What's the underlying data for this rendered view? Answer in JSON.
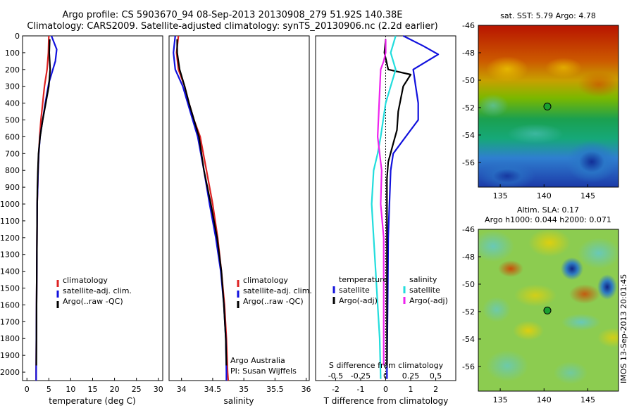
{
  "title_line1": "Argo profile: CS 5903670_94 08-Sep-2013 20130908_279 51.92S 140.38E",
  "title_line2": "Climatology: CARS2009. Satellite-adjusted climatology: synTS_20130906.nc (2.2d earlier)",
  "side_stamp": "IMOS 13-Sep-2013 20:01:45",
  "colors": {
    "climatology": "#dd2222",
    "satellite": "#1111dd",
    "argo": "#000000",
    "sal_sat": "#22dddd",
    "sal_argo": "#ee22ee"
  },
  "depth_ticks": [
    0,
    100,
    200,
    300,
    400,
    500,
    600,
    700,
    800,
    900,
    1000,
    1100,
    1200,
    1300,
    1400,
    1500,
    1600,
    1700,
    1800,
    1900,
    2000
  ],
  "panel_temp": {
    "xlabel": "temperature (deg C)",
    "xticks": [
      "0",
      "5",
      "10",
      "15",
      "20",
      "25",
      "30"
    ],
    "legend": [
      "climatology",
      "satellite-adj. clim.",
      "Argo(..raw -QC)"
    ]
  },
  "panel_sal": {
    "xlabel": "salinity",
    "xticks": [
      "34",
      "34.5",
      "35",
      "35.5",
      "36"
    ],
    "legend": [
      "climatology",
      "satellite-adj. clim.",
      "Argo(..raw -QC)"
    ],
    "credit1": "Argo Australia",
    "credit2": "PI: Susan Wijffels"
  },
  "panel_diff": {
    "xlabel": "T difference from climatology",
    "s_label": "S difference from climatology",
    "s_ticks": [
      "-0.5",
      "-0.25",
      "0",
      "0.25",
      "0.5"
    ],
    "t_ticks": [
      "-2",
      "-1",
      "0",
      "1",
      "2"
    ],
    "leg_temp_title": "temperature",
    "leg_sal_title": "salinity",
    "leg_t_sat": "satellite",
    "leg_t_argo": "Argo(-adj)",
    "leg_s_sat": "satellite",
    "leg_s_argo": "Argo(-adj)"
  },
  "map_sst": {
    "title": "sat. SST: 5.79 Argo: 4.78",
    "lat_ticks": [
      "-46",
      "-48",
      "-50",
      "-52",
      "-54",
      "-56"
    ],
    "lon_ticks": [
      "135",
      "140",
      "145"
    ]
  },
  "map_sla": {
    "title1": "Altim. SLA: 0.17",
    "title2": "Argo h1000: 0.044 h2000: 0.071",
    "lat_ticks": [
      "-46",
      "-48",
      "-50",
      "-52",
      "-54",
      "-56"
    ],
    "lon_ticks": [
      "135",
      "140",
      "145"
    ]
  },
  "chart_data": {
    "type": "line",
    "temperature": {
      "xlim": [
        -1,
        31
      ],
      "ylim": [
        0,
        2050
      ],
      "series": [
        {
          "name": "climatology",
          "x": [
            5.0,
            4.9,
            4.6,
            4.0,
            3.6,
            3.2,
            2.9,
            2.7,
            2.55,
            2.45,
            2.35,
            2.3,
            2.25,
            2.2,
            2.15,
            2.1,
            2.1
          ],
          "y": [
            0,
            100,
            200,
            300,
            400,
            500,
            600,
            700,
            800,
            900,
            1000,
            1200,
            1400,
            1600,
            1800,
            2000,
            2050
          ]
        },
        {
          "name": "satellite-adj. clim.",
          "x": [
            5.6,
            6.8,
            6.5,
            5.0,
            4.2,
            3.6,
            3.0,
            2.7,
            2.55,
            2.45,
            2.35,
            2.3,
            2.25,
            2.2,
            2.15,
            2.1,
            2.1
          ],
          "y": [
            0,
            80,
            150,
            280,
            400,
            500,
            600,
            700,
            800,
            900,
            1000,
            1200,
            1400,
            1600,
            1800,
            2000,
            2050
          ]
        },
        {
          "name": "Argo(..raw -QC)",
          "x": [
            5.2,
            5.1,
            5.3,
            5.0,
            4.3,
            3.6,
            3.0,
            2.65,
            2.5,
            2.4,
            2.35,
            2.3,
            2.25,
            2.2,
            2.15
          ],
          "y": [
            20,
            100,
            200,
            300,
            400,
            500,
            600,
            700,
            800,
            900,
            1000,
            1200,
            1400,
            1600,
            1960
          ]
        }
      ]
    },
    "salinity": {
      "xlim": [
        33.8,
        36.05
      ],
      "ylim": [
        0,
        2050
      ],
      "series": [
        {
          "name": "climatology",
          "x": [
            33.95,
            33.92,
            33.95,
            34.05,
            34.12,
            34.2,
            34.3,
            34.4,
            34.5,
            34.58,
            34.64,
            34.69,
            34.72,
            34.74,
            34.75
          ],
          "y": [
            0,
            100,
            200,
            300,
            400,
            500,
            600,
            800,
            1000,
            1200,
            1400,
            1600,
            1800,
            2000,
            2050
          ]
        },
        {
          "name": "satellite-adj. clim.",
          "x": [
            33.9,
            33.87,
            33.9,
            34.02,
            34.1,
            34.18,
            34.26,
            34.36,
            34.45,
            34.55,
            34.63,
            34.68,
            34.71,
            34.72,
            34.72
          ],
          "y": [
            0,
            100,
            200,
            300,
            400,
            500,
            600,
            800,
            1000,
            1200,
            1400,
            1600,
            1800,
            2000,
            2050
          ]
        },
        {
          "name": "Argo(..raw -QC)",
          "x": [
            33.93,
            33.93,
            33.97,
            34.05,
            34.12,
            34.2,
            34.28,
            34.36,
            34.47,
            34.57,
            34.64,
            34.68,
            34.71,
            34.72
          ],
          "y": [
            20,
            100,
            200,
            300,
            400,
            500,
            600,
            800,
            1000,
            1200,
            1400,
            1600,
            1800,
            1960
          ]
        }
      ]
    },
    "differences": {
      "t_xlim": [
        -2.8,
        2.8
      ],
      "s_xlim": [
        -0.7,
        0.7
      ],
      "ylim": [
        0,
        2050
      ],
      "series": [
        {
          "name": "temperature satellite",
          "axis": "T",
          "x": [
            0.7,
            1.5,
            2.1,
            1.1,
            1.2,
            1.3,
            1.3,
            0.8,
            0.3,
            0.2,
            0.15,
            0.1,
            0.08,
            0.05,
            0.05
          ],
          "y": [
            0,
            60,
            110,
            200,
            300,
            400,
            500,
            600,
            700,
            800,
            1000,
            1200,
            1600,
            2000,
            2040
          ]
        },
        {
          "name": "temperature Argo(-adj)",
          "axis": "T",
          "x": [
            0.0,
            -0.05,
            0.1,
            1.0,
            0.7,
            0.5,
            0.45,
            0.3,
            0.1,
            0.05,
            0.05,
            0.05,
            0.05,
            0.05
          ],
          "y": [
            20,
            100,
            200,
            230,
            300,
            450,
            560,
            640,
            750,
            850,
            1000,
            1400,
            1800,
            1960
          ]
        },
        {
          "name": "salinity satellite",
          "axis": "S",
          "x": [
            0.1,
            0.05,
            0.1,
            0.0,
            -0.05,
            -0.08,
            -0.12,
            -0.14,
            -0.12,
            -0.1,
            -0.08,
            -0.06,
            -0.05
          ],
          "y": [
            0,
            100,
            200,
            400,
            600,
            700,
            800,
            1000,
            1200,
            1400,
            1600,
            1800,
            2040
          ]
        },
        {
          "name": "salinity Argo(-adj)",
          "axis": "S",
          "x": [
            0.0,
            0.0,
            -0.02,
            -0.05,
            -0.08,
            -0.04,
            -0.05,
            -0.02,
            -0.02,
            -0.02,
            -0.02
          ],
          "y": [
            20,
            100,
            150,
            200,
            600,
            800,
            1000,
            1200,
            1400,
            1700,
            1960
          ]
        }
      ]
    },
    "map_sst": {
      "xlim": [
        132.5,
        148.5
      ],
      "ylim": [
        -57.8,
        -46
      ],
      "argo_point": {
        "lon": 140.38,
        "lat": -51.92
      }
    },
    "map_sla": {
      "xlim": [
        132.5,
        148.5
      ],
      "ylim": [
        -57.8,
        -46
      ],
      "argo_point": {
        "lon": 140.38,
        "lat": -51.92
      }
    }
  }
}
